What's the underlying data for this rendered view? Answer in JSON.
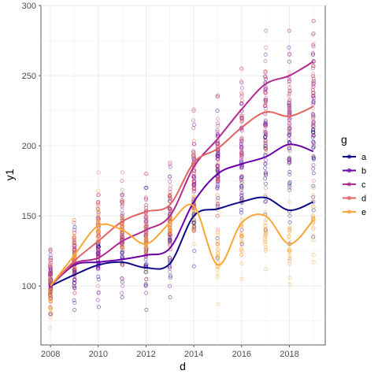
{
  "chart_data": {
    "type": "scatter",
    "xlabel": "d",
    "ylabel": "y1",
    "xlim": [
      2007.6,
      2019.5
    ],
    "ylim": [
      58,
      300
    ],
    "x_ticks": [
      2008,
      2010,
      2012,
      2014,
      2016,
      2018
    ],
    "x_tick_labels": [
      "2008",
      "2010",
      "2012",
      "2014",
      "2016",
      "2018"
    ],
    "y_ticks": [
      100,
      150,
      200,
      250,
      300
    ],
    "y_tick_labels": [
      "100",
      "150",
      "200",
      "250",
      "300"
    ],
    "grid": true,
    "legend": {
      "title": "g",
      "position": "right"
    },
    "series": [
      {
        "name": "a",
        "color": "#0d0887",
        "x": [
          2008,
          2009,
          2010,
          2011,
          2012,
          2013,
          2014,
          2015,
          2016,
          2017,
          2018,
          2019
        ],
        "y": [
          100,
          108,
          115,
          117,
          113,
          116,
          150,
          155,
          160,
          163,
          154,
          160
        ],
        "spread": [
          [
            80,
            120
          ],
          [
            83,
            142
          ],
          [
            85,
            155
          ],
          [
            92,
            160
          ],
          [
            83,
            170
          ],
          [
            92,
            178
          ],
          [
            114,
            190
          ],
          [
            120,
            225
          ],
          [
            130,
            230
          ],
          [
            140,
            245
          ],
          [
            130,
            260
          ],
          [
            135,
            265
          ]
        ]
      },
      {
        "name": "b",
        "color": "#6a00a8",
        "x": [
          2008,
          2009,
          2010,
          2011,
          2012,
          2013,
          2014,
          2015,
          2016,
          2017,
          2018,
          2019
        ],
        "y": [
          100,
          115,
          117,
          119,
          122,
          127,
          160,
          180,
          187,
          192,
          201,
          196
        ],
        "spread": [
          [
            80,
            125
          ],
          [
            88,
            140
          ],
          [
            90,
            160
          ],
          [
            95,
            165
          ],
          [
            95,
            170
          ],
          [
            100,
            185
          ],
          [
            125,
            215
          ],
          [
            130,
            235
          ],
          [
            140,
            245
          ],
          [
            160,
            265
          ],
          [
            150,
            270
          ],
          [
            160,
            280
          ]
        ]
      },
      {
        "name": "c",
        "color": "#b12a90",
        "x": [
          2008,
          2009,
          2010,
          2011,
          2012,
          2013,
          2014,
          2015,
          2016,
          2017,
          2018,
          2019
        ],
        "y": [
          100,
          116,
          120,
          132,
          140,
          150,
          185,
          205,
          226,
          244,
          250,
          260
        ],
        "spread": [
          [
            85,
            126
          ],
          [
            95,
            145
          ],
          [
            95,
            165
          ],
          [
            100,
            175
          ],
          [
            100,
            180
          ],
          [
            110,
            187
          ],
          [
            140,
            225
          ],
          [
            150,
            236
          ],
          [
            165,
            255
          ],
          [
            180,
            282
          ],
          [
            190,
            282
          ],
          [
            200,
            289
          ]
        ]
      },
      {
        "name": "d",
        "color": "#e16462",
        "x": [
          2008,
          2009,
          2010,
          2011,
          2012,
          2013,
          2014,
          2015,
          2016,
          2017,
          2018,
          2019
        ],
        "y": [
          100,
          118,
          132,
          146,
          153,
          158,
          188,
          198,
          213,
          224,
          221,
          228
        ],
        "spread": [
          [
            80,
            126
          ],
          [
            95,
            147
          ],
          [
            100,
            181
          ],
          [
            105,
            181
          ],
          [
            105,
            180
          ],
          [
            115,
            188
          ],
          [
            140,
            226
          ],
          [
            140,
            235
          ],
          [
            160,
            255
          ],
          [
            170,
            270
          ],
          [
            170,
            282
          ],
          [
            175,
            289
          ]
        ]
      },
      {
        "name": "e",
        "color": "#fca636",
        "x": [
          2008,
          2009,
          2010,
          2011,
          2012,
          2013,
          2014,
          2015,
          2016,
          2017,
          2018,
          2019
        ],
        "y": [
          100,
          122,
          143,
          140,
          130,
          145,
          157,
          115,
          145,
          150,
          130,
          147
        ],
        "spread": [
          [
            70,
            115
          ],
          [
            100,
            147
          ],
          [
            120,
            168
          ],
          [
            115,
            160
          ],
          [
            110,
            150
          ],
          [
            120,
            165
          ],
          [
            130,
            175
          ],
          [
            87,
            150
          ],
          [
            105,
            160
          ],
          [
            112,
            165
          ],
          [
            101,
            160
          ],
          [
            117,
            170
          ]
        ]
      }
    ]
  }
}
